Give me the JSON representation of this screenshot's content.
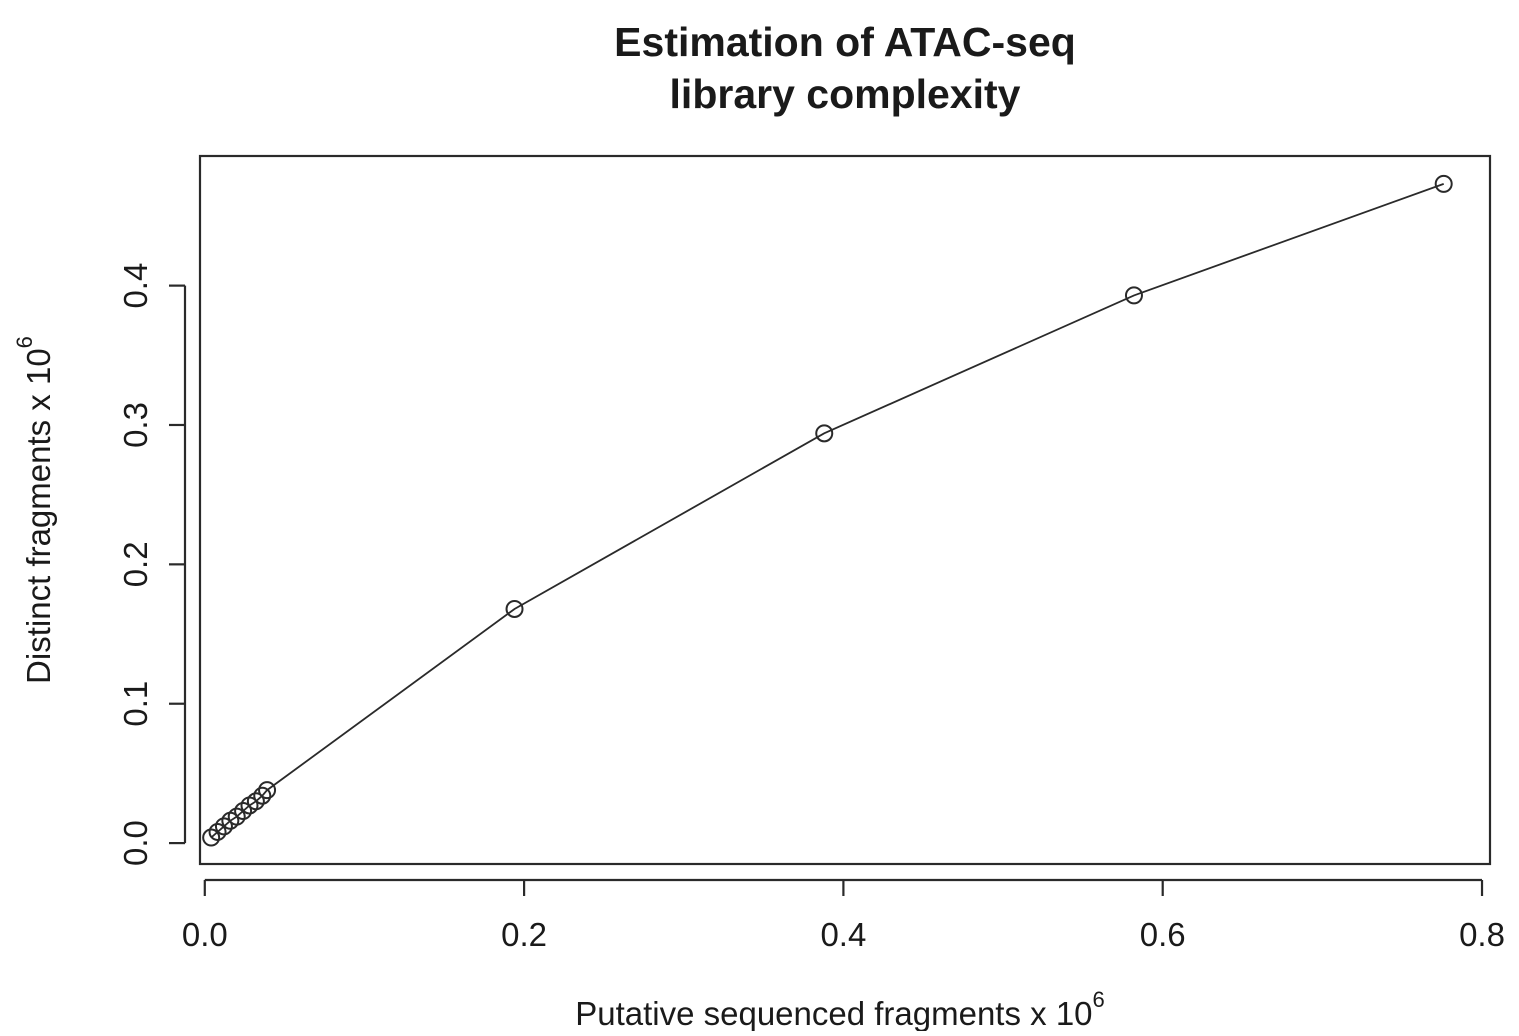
{
  "chart_data": {
    "type": "line",
    "title_lines": [
      "Estimation of ATAC-seq",
      "library complexity"
    ],
    "xlabel": "Putative sequenced fragments x 10",
    "xlabel_exponent": "6",
    "ylabel": "Distinct fragments x 10",
    "ylabel_exponent": "6",
    "xlim": [
      -0.003,
      0.805
    ],
    "ylim": [
      -0.015,
      0.493
    ],
    "xticks": [
      0.0,
      0.2,
      0.4,
      0.6,
      0.8
    ],
    "xtick_labels": [
      "0.0",
      "0.2",
      "0.4",
      "0.6",
      "0.8"
    ],
    "yticks": [
      0.0,
      0.1,
      0.2,
      0.3,
      0.4
    ],
    "ytick_labels": [
      "0.0",
      "0.1",
      "0.2",
      "0.3",
      "0.4"
    ],
    "grid": false,
    "legend": "none",
    "marker": "open-circle",
    "line_color": "#2a2a2a",
    "series": [
      {
        "x": [
          0.004,
          0.008,
          0.012,
          0.016,
          0.02,
          0.024,
          0.028,
          0.032,
          0.036,
          0.039,
          0.194,
          0.388,
          0.582,
          0.776
        ],
        "y": [
          0.004,
          0.008,
          0.012,
          0.016,
          0.019,
          0.023,
          0.027,
          0.03,
          0.034,
          0.038,
          0.168,
          0.294,
          0.393,
          0.473
        ]
      }
    ]
  }
}
